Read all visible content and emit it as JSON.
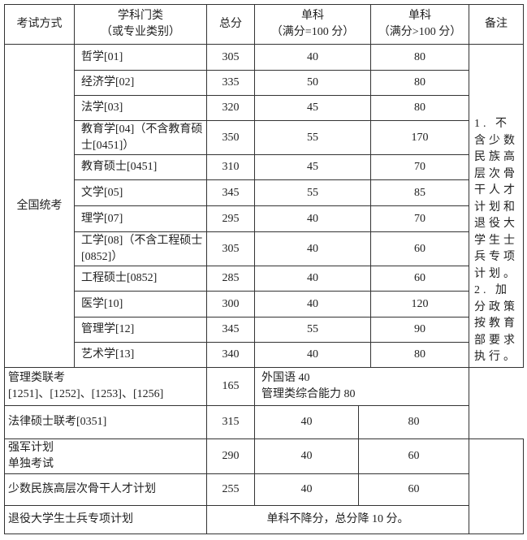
{
  "header": {
    "exam_type": "考试方式",
    "category_line1": "学科门类",
    "category_line2": "（或专业类别）",
    "total": "总分",
    "single100_line1": "单科",
    "single100_line2": "（满分=100 分）",
    "singleover_line1": "单科",
    "singleover_line2": "（满分>100 分）",
    "remark": "备注"
  },
  "national_exam": {
    "label": "全国统考",
    "rows": [
      {
        "subject": "哲学[01]",
        "total": "305",
        "s100": "40",
        "sover": "80"
      },
      {
        "subject": "经济学[02]",
        "total": "335",
        "s100": "50",
        "sover": "80"
      },
      {
        "subject": "法学[03]",
        "total": "320",
        "s100": "45",
        "sover": "80"
      },
      {
        "subject": "教育学[04]（不含教育硕士[0451]）",
        "total": "350",
        "s100": "55",
        "sover": "170"
      },
      {
        "subject": "教育硕士[0451]",
        "total": "310",
        "s100": "45",
        "sover": "70"
      },
      {
        "subject": "文学[05]",
        "total": "345",
        "s100": "55",
        "sover": "85"
      },
      {
        "subject": "理学[07]",
        "total": "295",
        "s100": "40",
        "sover": "70"
      },
      {
        "subject": "工学[08]（不含工程硕士[0852]）",
        "total": "305",
        "s100": "40",
        "sover": "60"
      },
      {
        "subject": "工程硕士[0852]",
        "total": "285",
        "s100": "40",
        "sover": "60"
      },
      {
        "subject": "医学[10]",
        "total": "300",
        "s100": "40",
        "sover": "120"
      },
      {
        "subject": "管理学[12]",
        "total": "345",
        "s100": "55",
        "sover": "90"
      },
      {
        "subject": "艺术学[13]",
        "total": "340",
        "s100": "40",
        "sover": "80"
      }
    ]
  },
  "remark_text": "1. 不含少数民族高层次骨干人才计划和退役大学生士兵专项计划。2. 加分政策按教育部要求执行。",
  "management": {
    "label_line1": "管理类联考",
    "label_line2": "[1251]、[1252]、[1253]、[1256]",
    "total": "165",
    "detail_line1": "外国语 40",
    "detail_line2": "管理类综合能力 80"
  },
  "law": {
    "label": "法律硕士联考[0351]",
    "total": "315",
    "s100": "40",
    "sover": "80"
  },
  "military": {
    "label_line1": "强军计划",
    "label_line2": "单独考试",
    "total": "290",
    "s100": "40",
    "sover": "60"
  },
  "minority": {
    "label": "少数民族高层次骨干人才计划",
    "total": "255",
    "s100": "40",
    "sover": "60"
  },
  "veteran": {
    "label": "退役大学生士兵专项计划",
    "rule": "单科不降分，总分降 10 分。"
  }
}
